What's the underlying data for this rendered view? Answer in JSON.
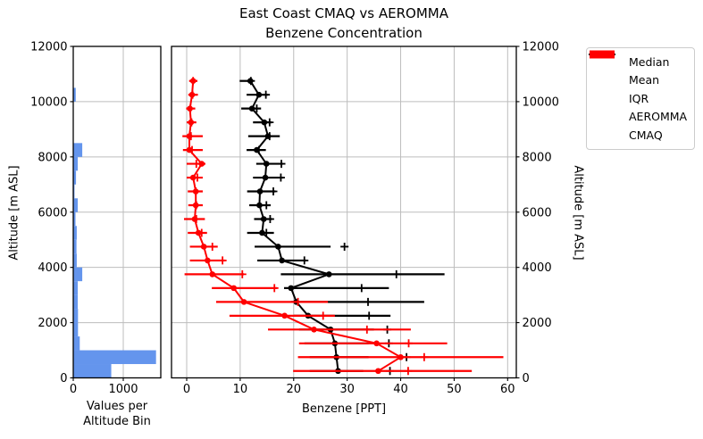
{
  "title": {
    "line1": "East Coast CMAQ vs AEROMMA",
    "line2": "Benzene Concentration"
  },
  "colors": {
    "aeromma": "#000000",
    "cmaq": "#ff0000",
    "histogram": "#6495ED",
    "grid": "#bdbdbd",
    "spine": "#000000"
  },
  "legend": {
    "items": [
      {
        "label": "Median",
        "marker": "circle",
        "color": "#000000"
      },
      {
        "label": "Mean",
        "marker": "plus",
        "color": "#000000"
      },
      {
        "label": "IQR",
        "marker": "line",
        "color": "#000000"
      },
      {
        "label": "AEROMMA",
        "marker": "patch",
        "color": "#000000"
      },
      {
        "label": "CMAQ",
        "marker": "patch",
        "color": "#ff0000"
      }
    ]
  },
  "chart_data": [
    {
      "type": "bar",
      "orientation": "horizontal",
      "xlabel_lines": [
        "Values per",
        "Altitude Bin"
      ],
      "ylabel": "Altitude [m ASL]",
      "xlim": [
        0,
        1750
      ],
      "ylim": [
        0,
        12000
      ],
      "xticks": [
        0,
        1000
      ],
      "yticks": [
        0,
        2000,
        4000,
        6000,
        8000,
        10000,
        12000
      ],
      "grid": true,
      "bar_color": "#6495ED",
      "bin_size": 500,
      "bin_start": 0,
      "values": [
        760,
        1655,
        130,
        95,
        95,
        90,
        90,
        180,
        70,
        65,
        70,
        45,
        90,
        25,
        55,
        90,
        180,
        0,
        0,
        0,
        50,
        0,
        0,
        0
      ]
    },
    {
      "type": "line",
      "subtype": "vertical-profile-with-iqr",
      "title": "East Coast CMAQ vs AEROMMA\nBenzene Concentration",
      "xlabel": "Benzene [PPT]",
      "right_ylabel": "Altitude [m ASL]",
      "xlim": [
        -2.84,
        61.62
      ],
      "ylim": [
        0,
        12000
      ],
      "xticks": [
        0,
        10,
        20,
        30,
        40,
        50,
        60
      ],
      "yticks_right": [
        0,
        2000,
        4000,
        6000,
        8000,
        10000,
        12000
      ],
      "grid": true,
      "legend_position": "outside-right",
      "altitudes": [
        250,
        750,
        1250,
        1750,
        2250,
        2750,
        3250,
        3750,
        4250,
        4750,
        5250,
        5750,
        6250,
        6750,
        7250,
        7750,
        8250,
        8750,
        9250,
        9750,
        10250,
        10750
      ],
      "series": [
        {
          "name": "AEROMMA",
          "color": "#000000",
          "median": [
            28.3,
            28.0,
            27.7,
            26.9,
            22.7,
            20.5,
            19.5,
            26.6,
            17.8,
            17.1,
            14.1,
            14.4,
            13.6,
            13.7,
            14.7,
            14.9,
            13.1,
            15.2,
            14.5,
            12.2,
            13.5,
            11.9
          ],
          "q1": [
            23.0,
            23.0,
            22.0,
            21.0,
            20.0,
            19.5,
            18.2,
            17.6,
            13.2,
            12.7,
            11.3,
            12.6,
            11.7,
            11.3,
            12.4,
            13.0,
            11.2,
            11.5,
            12.4,
            10.2,
            11.2,
            9.9
          ],
          "q3": [
            33.0,
            34.0,
            34.0,
            35.0,
            38.1,
            44.4,
            37.8,
            48.2,
            22.4,
            26.9,
            16.3,
            16.0,
            15.7,
            16.6,
            18.0,
            18.0,
            14.8,
            17.4,
            15.9,
            13.9,
            15.2,
            12.3
          ],
          "mean": [
            38.0,
            41.1,
            37.8,
            37.5,
            34.1,
            33.9,
            32.7,
            39.2,
            22.0,
            29.5,
            14.9,
            15.6,
            14.9,
            16.2,
            17.6,
            17.7,
            13.5,
            15.5,
            15.5,
            13.1,
            14.8,
            12.0
          ]
        },
        {
          "name": "CMAQ",
          "color": "#ff0000",
          "median": [
            35.8,
            40.0,
            35.5,
            23.8,
            18.3,
            10.7,
            8.8,
            4.8,
            3.9,
            3.2,
            2.2,
            1.5,
            1.7,
            1.7,
            1.2,
            2.8,
            0.5,
            0.5,
            0.8,
            0.6,
            1.0,
            1.2
          ],
          "q1": [
            19.9,
            20.8,
            21.0,
            15.2,
            8.0,
            5.5,
            4.7,
            -0.4,
            0.6,
            0.6,
            0.2,
            -0.5,
            0.3,
            0.2,
            0.0,
            0.0,
            -0.7,
            -0.8,
            0.0,
            -0.1,
            0.3,
            0.5
          ],
          "q3": [
            53.3,
            59.2,
            48.7,
            41.9,
            27.7,
            26.4,
            16.9,
            10.7,
            7.2,
            5.8,
            3.8,
            3.4,
            3.0,
            3.0,
            3.0,
            3.5,
            3.0,
            3.0,
            1.8,
            1.6,
            2.1,
            2.0
          ],
          "mean": [
            41.4,
            44.4,
            41.5,
            33.7,
            25.5,
            20.8,
            16.4,
            10.4,
            6.7,
            4.8,
            2.8,
            1.8,
            1.8,
            1.7,
            2.0,
            1.8,
            1.0,
            0.8,
            0.9,
            0.7,
            1.1,
            1.2
          ]
        }
      ]
    }
  ]
}
